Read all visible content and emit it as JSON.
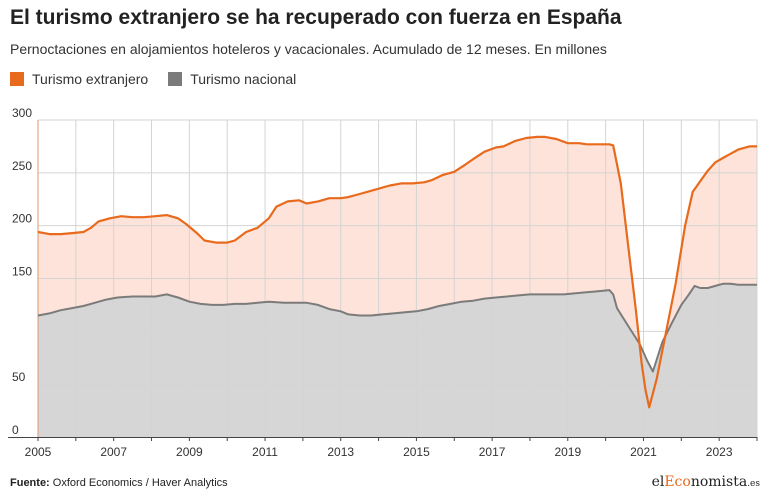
{
  "title": "El turismo extranjero se ha recuperado con fuerza en España",
  "subtitle": "Pernoctaciones en alojamientos hoteleros y vacacionales. Acumulado de 12 meses. En millones",
  "source": {
    "label": "Fuente:",
    "text": "Oxford Economics / Haver Analytics"
  },
  "logo": {
    "pre": "el",
    "accent": "Eco",
    "post": "nomista",
    "suffix": ".es"
  },
  "colors": {
    "extranjero": "#e86a1c",
    "extranjero_fill": "#fde3d9",
    "nacional": "#7b7b7b",
    "nacional_fill": "#d6d6d6",
    "grid": "#d4d4d4",
    "axis_vline": "#e86a1c"
  },
  "chart_data": {
    "type": "area",
    "title": "El turismo extranjero se ha recuperado con fuerza en España",
    "subtitle": "Pernoctaciones en alojamientos hoteleros y vacacionales. Acumulado de 12 meses. En millones",
    "xlabel": "",
    "ylabel": "",
    "xlim": [
      2005.0,
      2024.0
    ],
    "ylim": [
      0,
      300
    ],
    "yticks": [
      0,
      50,
      150,
      200,
      250,
      300
    ],
    "xticks": [
      2005,
      2007,
      2009,
      2011,
      2013,
      2015,
      2017,
      2019,
      2021,
      2023
    ],
    "grid": true,
    "legend": "top-left",
    "series": [
      {
        "name": "Turismo extranjero",
        "points": [
          [
            2005.0,
            194
          ],
          [
            2005.3,
            192
          ],
          [
            2005.6,
            192
          ],
          [
            2005.9,
            193
          ],
          [
            2006.2,
            194
          ],
          [
            2006.4,
            198
          ],
          [
            2006.6,
            204
          ],
          [
            2006.9,
            207
          ],
          [
            2007.2,
            209
          ],
          [
            2007.5,
            208
          ],
          [
            2007.8,
            208
          ],
          [
            2008.1,
            209
          ],
          [
            2008.4,
            210
          ],
          [
            2008.7,
            207
          ],
          [
            2008.9,
            202
          ],
          [
            2009.2,
            193
          ],
          [
            2009.4,
            186
          ],
          [
            2009.7,
            184
          ],
          [
            2010.0,
            184
          ],
          [
            2010.2,
            186
          ],
          [
            2010.5,
            194
          ],
          [
            2010.8,
            198
          ],
          [
            2011.1,
            207
          ],
          [
            2011.3,
            218
          ],
          [
            2011.6,
            223
          ],
          [
            2011.9,
            224
          ],
          [
            2012.1,
            221
          ],
          [
            2012.4,
            223
          ],
          [
            2012.7,
            226
          ],
          [
            2013.0,
            226
          ],
          [
            2013.2,
            227
          ],
          [
            2013.5,
            230
          ],
          [
            2013.8,
            233
          ],
          [
            2014.1,
            236
          ],
          [
            2014.3,
            238
          ],
          [
            2014.6,
            240
          ],
          [
            2014.9,
            240
          ],
          [
            2015.2,
            241
          ],
          [
            2015.4,
            243
          ],
          [
            2015.7,
            248
          ],
          [
            2016.0,
            251
          ],
          [
            2016.3,
            258
          ],
          [
            2016.5,
            263
          ],
          [
            2016.8,
            270
          ],
          [
            2017.1,
            274
          ],
          [
            2017.3,
            275
          ],
          [
            2017.6,
            280
          ],
          [
            2017.9,
            283
          ],
          [
            2018.2,
            284
          ],
          [
            2018.4,
            284
          ],
          [
            2018.7,
            282
          ],
          [
            2019.0,
            278
          ],
          [
            2019.3,
            278
          ],
          [
            2019.5,
            277
          ],
          [
            2019.8,
            277
          ],
          [
            2020.1,
            277
          ],
          [
            2020.2,
            276
          ],
          [
            2020.4,
            240
          ],
          [
            2020.6,
            180
          ],
          [
            2020.8,
            120
          ],
          [
            2020.95,
            70
          ],
          [
            2021.05,
            45
          ],
          [
            2021.15,
            28
          ],
          [
            2021.35,
            55
          ],
          [
            2021.6,
            100
          ],
          [
            2021.85,
            145
          ],
          [
            2022.1,
            200
          ],
          [
            2022.3,
            232
          ],
          [
            2022.5,
            242
          ],
          [
            2022.7,
            252
          ],
          [
            2022.9,
            260
          ],
          [
            2023.1,
            264
          ],
          [
            2023.3,
            268
          ],
          [
            2023.5,
            272
          ],
          [
            2023.8,
            275
          ],
          [
            2024.0,
            275
          ]
        ]
      },
      {
        "name": "Turismo nacional",
        "points": [
          [
            2005.0,
            115
          ],
          [
            2005.3,
            117
          ],
          [
            2005.6,
            120
          ],
          [
            2005.9,
            122
          ],
          [
            2006.2,
            124
          ],
          [
            2006.5,
            127
          ],
          [
            2006.8,
            130
          ],
          [
            2007.1,
            132
          ],
          [
            2007.5,
            133
          ],
          [
            2007.8,
            133
          ],
          [
            2008.1,
            133
          ],
          [
            2008.4,
            135
          ],
          [
            2008.7,
            132
          ],
          [
            2009.0,
            128
          ],
          [
            2009.3,
            126
          ],
          [
            2009.6,
            125
          ],
          [
            2009.9,
            125
          ],
          [
            2010.2,
            126
          ],
          [
            2010.5,
            126
          ],
          [
            2010.8,
            127
          ],
          [
            2011.1,
            128
          ],
          [
            2011.5,
            127
          ],
          [
            2011.8,
            127
          ],
          [
            2012.1,
            127
          ],
          [
            2012.4,
            125
          ],
          [
            2012.7,
            121
          ],
          [
            2013.0,
            119
          ],
          [
            2013.2,
            116
          ],
          [
            2013.5,
            115
          ],
          [
            2013.8,
            115
          ],
          [
            2014.1,
            116
          ],
          [
            2014.4,
            117
          ],
          [
            2014.7,
            118
          ],
          [
            2015.0,
            119
          ],
          [
            2015.3,
            121
          ],
          [
            2015.6,
            124
          ],
          [
            2015.9,
            126
          ],
          [
            2016.2,
            128
          ],
          [
            2016.5,
            129
          ],
          [
            2016.8,
            131
          ],
          [
            2017.1,
            132
          ],
          [
            2017.4,
            133
          ],
          [
            2017.7,
            134
          ],
          [
            2018.0,
            135
          ],
          [
            2018.3,
            135
          ],
          [
            2018.6,
            135
          ],
          [
            2018.9,
            135
          ],
          [
            2019.2,
            136
          ],
          [
            2019.5,
            137
          ],
          [
            2019.8,
            138
          ],
          [
            2020.1,
            139
          ],
          [
            2020.2,
            135
          ],
          [
            2020.3,
            122
          ],
          [
            2020.6,
            105
          ],
          [
            2020.9,
            88
          ],
          [
            2021.1,
            72
          ],
          [
            2021.25,
            62
          ],
          [
            2021.5,
            90
          ],
          [
            2021.75,
            108
          ],
          [
            2022.0,
            125
          ],
          [
            2022.2,
            135
          ],
          [
            2022.35,
            143
          ],
          [
            2022.5,
            141
          ],
          [
            2022.7,
            141
          ],
          [
            2022.9,
            143
          ],
          [
            2023.1,
            145
          ],
          [
            2023.3,
            145
          ],
          [
            2023.5,
            144
          ],
          [
            2023.8,
            144
          ],
          [
            2024.0,
            144
          ]
        ]
      }
    ]
  }
}
